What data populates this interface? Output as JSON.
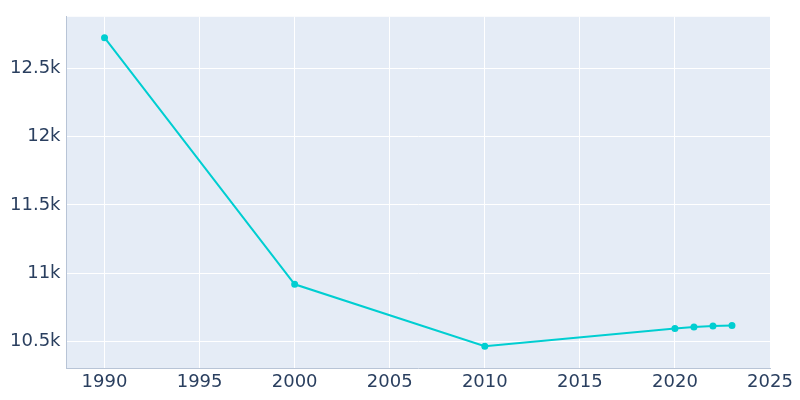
{
  "chart_data": {
    "type": "line",
    "x": [
      1990,
      2000,
      2010,
      2020,
      2021,
      2022,
      2023
    ],
    "values": [
      12727,
      10917,
      10462,
      10593,
      10603,
      10612,
      10615
    ],
    "color": "#00ced1",
    "marker": "circle",
    "xlim": [
      1988,
      2025
    ],
    "xticks": [
      1990,
      1995,
      2000,
      2005,
      2010,
      2015,
      2020,
      2025
    ],
    "ylim": [
      10300,
      12880
    ],
    "yticks": [
      {
        "value": 10500,
        "label": "10.5k"
      },
      {
        "value": 11000,
        "label": "11k"
      },
      {
        "value": 11500,
        "label": "11.5k"
      },
      {
        "value": 12000,
        "label": "12k"
      },
      {
        "value": 12500,
        "label": "12.5k"
      }
    ],
    "grid": true
  }
}
